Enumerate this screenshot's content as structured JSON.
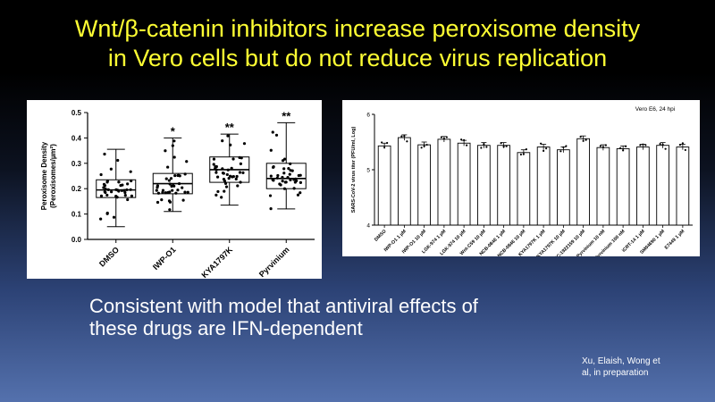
{
  "slide": {
    "title_line1": "Wnt/β-catenin inhibitors increase peroxisome density",
    "title_line2": "in Vero cells but do not reduce virus replication",
    "subtitle_line1": "Consistent with model that antiviral effects of",
    "subtitle_line2": "these drugs are IFN-dependent",
    "citation_line1": "Xu, Elaish, Wong et",
    "citation_line2": "al, in preparation"
  },
  "chart_data": [
    {
      "type": "box",
      "ylabel_line1": "Peroxisome Density",
      "ylabel_line2": "(Peroxisomes/µm²)",
      "ylim": [
        0,
        0.5
      ],
      "yticks": [
        "0.0",
        "0.1",
        "0.2",
        "0.3",
        "0.4",
        "0.5"
      ],
      "categories": [
        "DMSO",
        "IWP-O1",
        "KYA1797K",
        "Pyrvinium"
      ],
      "boxes": [
        {
          "min": 0.05,
          "q1": 0.165,
          "median": 0.195,
          "q3": 0.235,
          "max": 0.355,
          "sig": ""
        },
        {
          "min": 0.11,
          "q1": 0.18,
          "median": 0.22,
          "q3": 0.26,
          "max": 0.4,
          "sig": "*"
        },
        {
          "min": 0.135,
          "q1": 0.225,
          "median": 0.275,
          "q3": 0.325,
          "max": 0.415,
          "sig": "**"
        },
        {
          "min": 0.12,
          "q1": 0.2,
          "median": 0.24,
          "q3": 0.3,
          "max": 0.46,
          "sig": "**"
        }
      ]
    },
    {
      "type": "bar",
      "annotation": "Vero E6, 24 hpi",
      "ylabel": "SARS-CoV-2 virus titer (PFU/ml, Log)",
      "ylim": [
        4,
        6
      ],
      "yticks": [
        "4",
        "5",
        "6"
      ],
      "categories": [
        "DMSO",
        "IWP-O1 1 µM",
        "IWP-O1 10 µM",
        "LGK-974 1 µM",
        "LGK-974 10 µM",
        "Wnt-C59 10 µM",
        "NCB-0846 1 µM",
        "NCB-0846 10 µM",
        "KYA1797K 1 µM",
        "KYA1797K 10 µM",
        "ETC-1922159 10 µM",
        "Pyrvinium 10 nM",
        "Pyrvinium 100 nM",
        "iCRT-14 1 µM",
        "SM04690 1 µM",
        "E7449 1 µM"
      ],
      "values": [
        5.43,
        5.58,
        5.45,
        5.55,
        5.48,
        5.44,
        5.44,
        5.31,
        5.41,
        5.36,
        5.56,
        5.4,
        5.38,
        5.41,
        5.44,
        5.41
      ]
    }
  ]
}
